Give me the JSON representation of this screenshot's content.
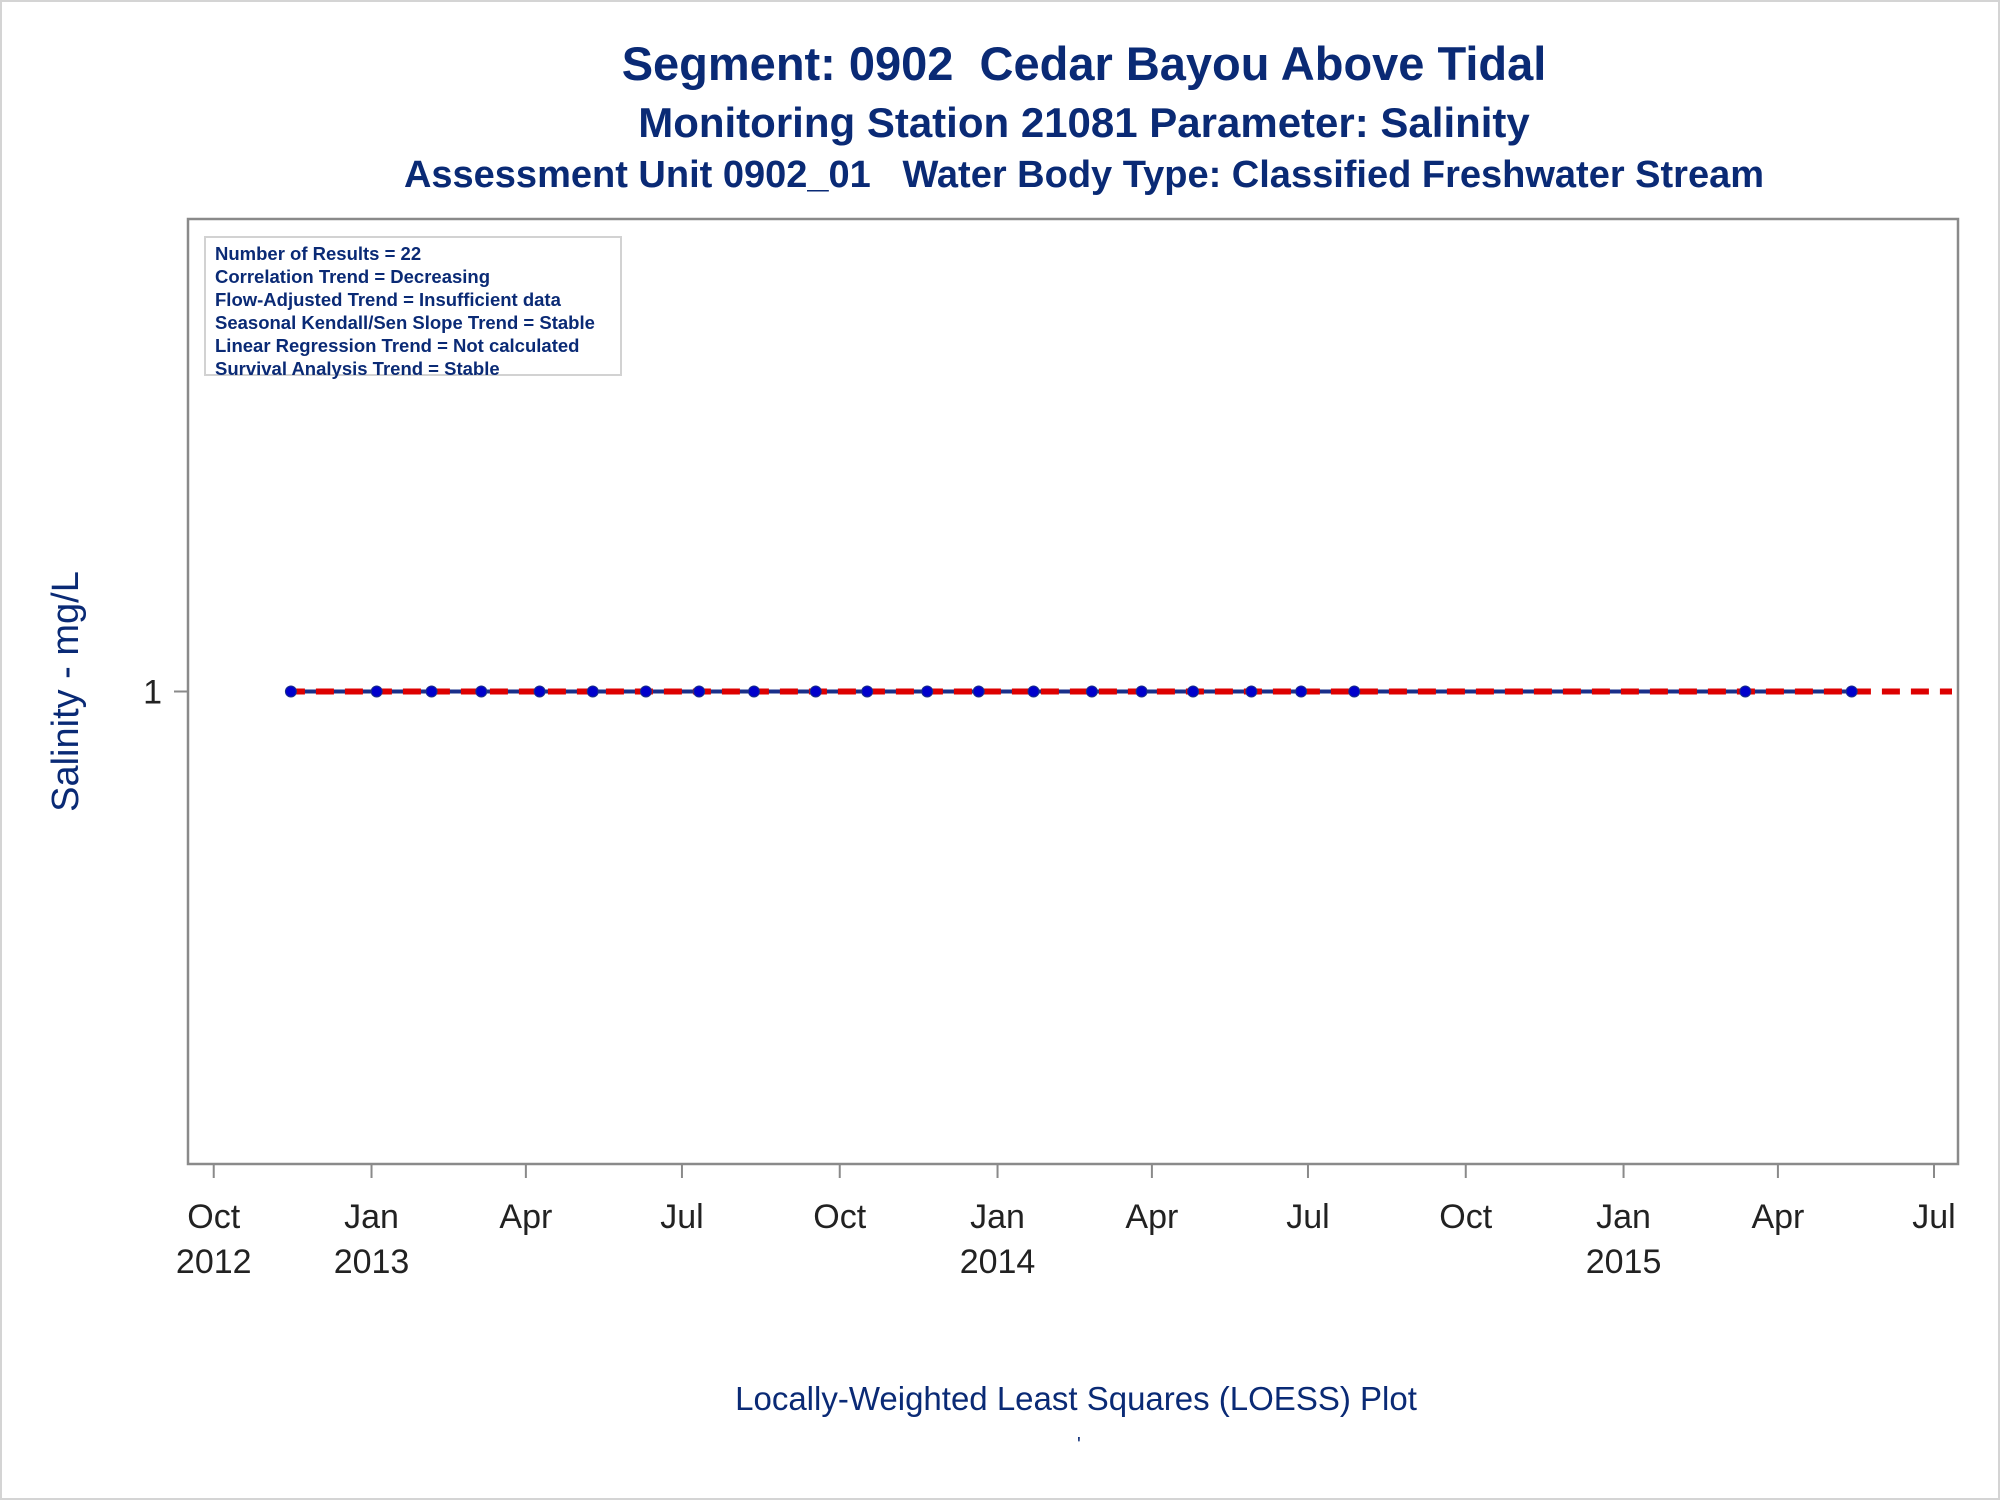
{
  "titles": {
    "line1": "Segment: 0902  Cedar Bayou Above Tidal",
    "line2": "Monitoring Station 21081 Parameter: Salinity",
    "line3": "Assessment Unit 0902_01   Water Body Type: Classified Freshwater Stream"
  },
  "stats_box": [
    "Number of Results = 22",
    "Correlation Trend = Decreasing",
    "Flow-Adjusted Trend = Insufficient data",
    "Seasonal Kendall/Sen Slope Trend = Stable",
    "Linear Regression Trend = Not calculated",
    "Survival Analysis Trend = Stable"
  ],
  "footnote": "Locally-Weighted Least Squares (LOESS) Plot",
  "footnote_mark": "'",
  "colors": {
    "text": "#0a2a75",
    "series": "#1a2f8a",
    "marker": "#0000cc",
    "reference": "#dd0000",
    "axis": "#8a8a8a"
  },
  "chart_data": {
    "type": "line",
    "ylabel": "Salinity - mg/L",
    "xlabel": "",
    "x_ticks": [
      {
        "date": "2012-10-01",
        "label": "Oct",
        "year": "2012"
      },
      {
        "date": "2013-01-01",
        "label": "Jan",
        "year": "2013"
      },
      {
        "date": "2013-04-01",
        "label": "Apr",
        "year": ""
      },
      {
        "date": "2013-07-01",
        "label": "Jul",
        "year": ""
      },
      {
        "date": "2013-10-01",
        "label": "Oct",
        "year": ""
      },
      {
        "date": "2014-01-01",
        "label": "Jan",
        "year": "2014"
      },
      {
        "date": "2014-04-01",
        "label": "Apr",
        "year": ""
      },
      {
        "date": "2014-07-01",
        "label": "Jul",
        "year": ""
      },
      {
        "date": "2014-10-01",
        "label": "Oct",
        "year": ""
      },
      {
        "date": "2015-01-01",
        "label": "Jan",
        "year": "2015"
      },
      {
        "date": "2015-04-01",
        "label": "Apr",
        "year": ""
      },
      {
        "date": "2015-07-01",
        "label": "Jul",
        "year": ""
      }
    ],
    "y_ticks": [
      1
    ],
    "xlim": [
      "2012-09-16",
      "2015-07-15"
    ],
    "ylim": [
      0,
      2
    ],
    "reference_line": {
      "y": 1,
      "style": "dashed"
    },
    "series": [
      {
        "x": [
          "2012-11-15",
          "2013-01-04",
          "2013-02-05",
          "2013-03-06",
          "2013-04-09",
          "2013-05-10",
          "2013-06-10",
          "2013-07-11",
          "2013-08-12",
          "2013-09-17",
          "2013-10-17",
          "2013-11-21",
          "2013-12-21",
          "2014-01-22",
          "2014-02-25",
          "2014-03-26",
          "2014-04-25",
          "2014-05-29",
          "2014-06-27",
          "2014-07-28",
          "2015-03-13",
          "2015-05-14"
        ],
        "values": [
          1,
          1,
          1,
          1,
          1,
          1,
          1,
          1,
          1,
          1,
          1,
          1,
          1,
          1,
          1,
          1,
          1,
          1,
          1,
          1,
          1,
          1
        ]
      }
    ],
    "grid": false
  }
}
